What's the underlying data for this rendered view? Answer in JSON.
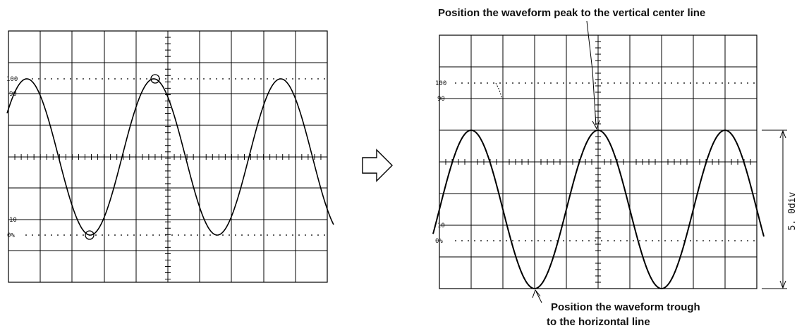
{
  "annotations": {
    "peak_note": "Position the waveform peak to the vertical center line",
    "trough_note_line1": "Position the waveform trough",
    "trough_note_line2": "to the horizontal line",
    "divisions_label": "5. 0div"
  },
  "level_labels": {
    "l100": "100",
    "l90": "90",
    "l10": "10",
    "l0": "0%"
  },
  "arrow_symbol": "⇨"
}
